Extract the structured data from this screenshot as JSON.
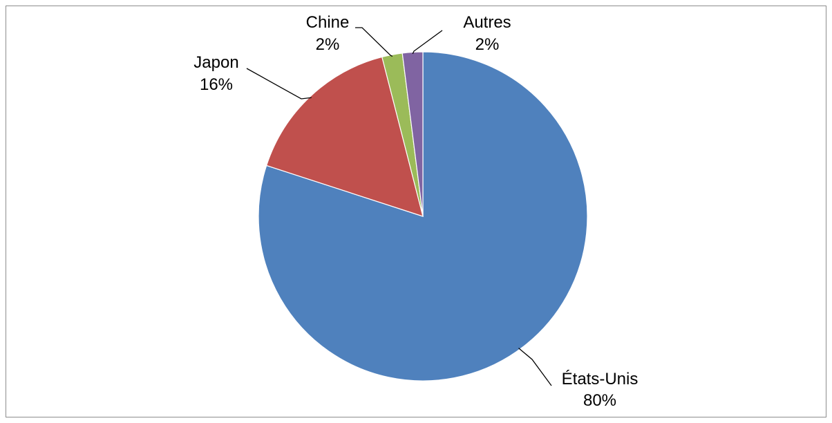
{
  "chart_data": {
    "type": "pie",
    "title": "",
    "slices": [
      {
        "label": "États-Unis",
        "value": 80,
        "value_label": "80%",
        "color": "#4f81bd"
      },
      {
        "label": "Japon",
        "value": 16,
        "value_label": "16%",
        "color": "#c0504d"
      },
      {
        "label": "Chine",
        "value": 2,
        "value_label": "2%",
        "color": "#9bbb59"
      },
      {
        "label": "Autres",
        "value": 2,
        "value_label": "2%",
        "color": "#8064a2"
      }
    ],
    "legend": "none"
  }
}
